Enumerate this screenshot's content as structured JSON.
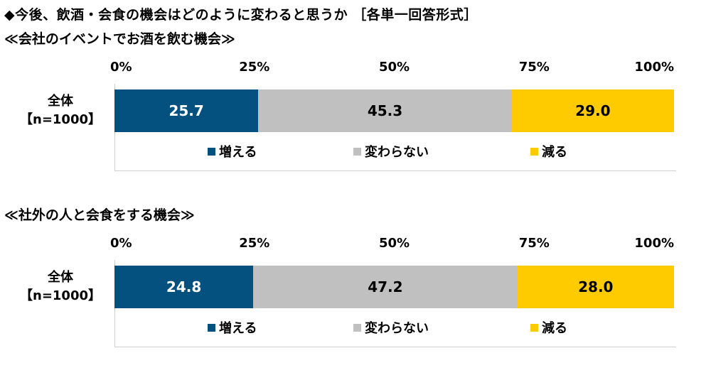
{
  "title": "◆今後、飲酒・会食の機会はどのように変わると思うか ［各単一回答形式］",
  "colors": {
    "increase": "#04507f",
    "same": "#c0c0c0",
    "decrease": "#fecb00"
  },
  "legend": [
    "増える",
    "変わらない",
    "減る"
  ],
  "ticks": [
    "0%",
    "25%",
    "50%",
    "75%",
    "100%"
  ],
  "chart_data": [
    {
      "type": "bar",
      "title": "≪会社のイベントでお酒を飲む機会≫",
      "categories": [
        "全体【n=1000】"
      ],
      "row_label_line1": "全体",
      "row_label_line2": "【n=1000】",
      "series": [
        {
          "name": "増える",
          "values": [
            25.7
          ],
          "label": "25.7"
        },
        {
          "name": "変わらない",
          "values": [
            45.3
          ],
          "label": "45.3"
        },
        {
          "name": "減る",
          "values": [
            29.0
          ],
          "label": "29.0"
        }
      ],
      "xlim": [
        0,
        100
      ]
    },
    {
      "type": "bar",
      "title": "≪社外の人と会食をする機会≫",
      "categories": [
        "全体【n=1000】"
      ],
      "row_label_line1": "全体",
      "row_label_line2": "【n=1000】",
      "series": [
        {
          "name": "増える",
          "values": [
            24.8
          ],
          "label": "24.8"
        },
        {
          "name": "変わらない",
          "values": [
            47.2
          ],
          "label": "47.2"
        },
        {
          "name": "減る",
          "values": [
            28.0
          ],
          "label": "28.0"
        }
      ],
      "xlim": [
        0,
        100
      ]
    }
  ]
}
